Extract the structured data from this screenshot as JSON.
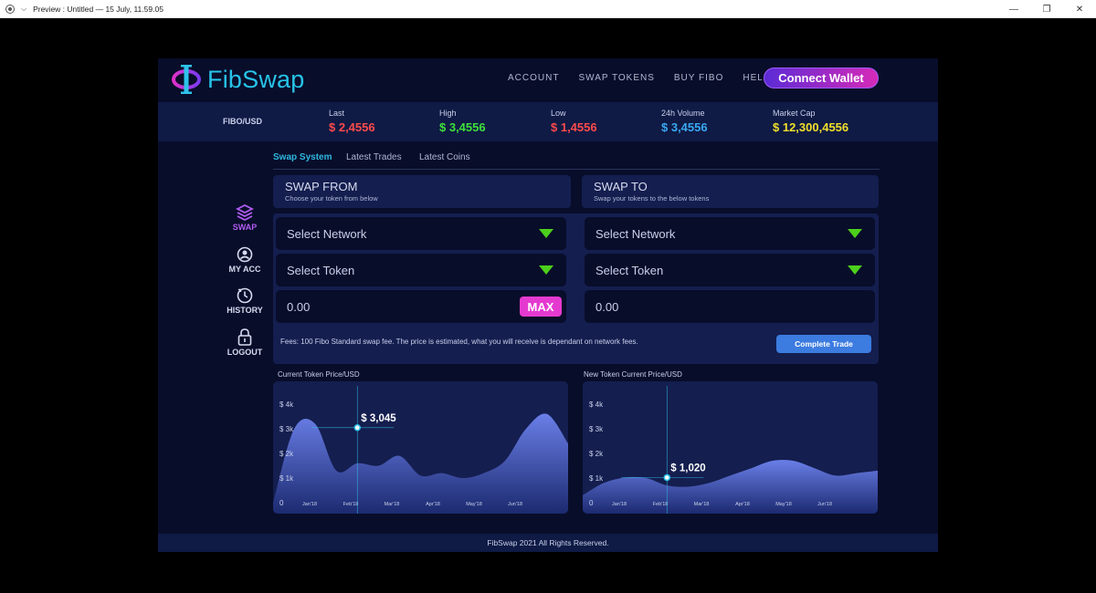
{
  "window": {
    "title": "Preview : Untitled — 15 July, 11.59.05",
    "minimize": "—",
    "restore": "❐",
    "close": "✕"
  },
  "header": {
    "logo_text": "FibSwap",
    "nav": [
      "ACCOUNT",
      "SWAP TOKENS",
      "BUY FIBO",
      "HELP"
    ],
    "connect_label": "Connect Wallet"
  },
  "ticker": {
    "pair": "FIBO/USD",
    "items": [
      {
        "label": "Last",
        "value": "$ 2,4556",
        "color": "#ff4b4b"
      },
      {
        "label": "High",
        "value": "$ 3,4556",
        "color": "#3fe03a"
      },
      {
        "label": "Low",
        "value": "$ 1,4556",
        "color": "#ff4b4b"
      },
      {
        "label": "24h Volume",
        "value": "$ 3,4556",
        "color": "#3aa8f0"
      },
      {
        "label": "Market Cap",
        "value": "$ 12,300,4556",
        "color": "#f0e02a"
      }
    ]
  },
  "tabs": [
    "Swap System",
    "Latest Trades",
    "Latest Coins"
  ],
  "sidebar": {
    "items": [
      {
        "label": "SWAP",
        "icon": "stack-icon"
      },
      {
        "label": "MY ACC",
        "icon": "user-icon"
      },
      {
        "label": "HISTORY",
        "icon": "clock-icon"
      },
      {
        "label": "LOGOUT",
        "icon": "lock-icon"
      }
    ]
  },
  "swap_from": {
    "title": "SWAP FROM",
    "subtitle": "Choose your token from below",
    "network_placeholder": "Select Network",
    "token_placeholder": "Select Token",
    "amount": "0.00",
    "max_label": "MAX"
  },
  "swap_to": {
    "title": "SWAP TO",
    "subtitle": "Swap your tokens to the below tokens",
    "network_placeholder": "Select Network",
    "token_placeholder": "Select Token",
    "amount": "0.00"
  },
  "fees_text": "Fees: 100 Fibo Standard swap fee. The price is estimated, what you will receive is dependant on network fees.",
  "complete_label": "Complete Trade",
  "chart_data": [
    {
      "type": "area",
      "title": "Current Token Price/USD",
      "x_ticks": [
        "Jan'18",
        "Feb'18",
        "Mar'18",
        "Apr'18",
        "May'18",
        "Jun'18"
      ],
      "y_ticks": [
        "0",
        "$ 1k",
        "$ 2k",
        "$ 3k",
        "$ 4k"
      ],
      "ylim": [
        0,
        4000
      ],
      "series": [
        {
          "values": [
            0,
            3000,
            3200,
            1300,
            1600,
            1500,
            1900,
            1100,
            1200,
            1000,
            1200,
            1700,
            3000,
            3600,
            2400
          ]
        }
      ],
      "annotation": {
        "label": "$ 3,045",
        "value": 3045
      }
    },
    {
      "type": "area",
      "title": "New Token Current Price/USD",
      "x_ticks": [
        "Jan'18",
        "Feb'18",
        "Mar'18",
        "Apr'18",
        "May'18",
        "Jun'18"
      ],
      "y_ticks": [
        "0",
        "$ 1k",
        "$ 2k",
        "$ 3k",
        "$ 4k"
      ],
      "ylim": [
        0,
        4000
      ],
      "series": [
        {
          "values": [
            300,
            800,
            1020,
            1000,
            700,
            650,
            800,
            1100,
            1400,
            1700,
            1700,
            1400,
            1100,
            1200,
            1300
          ]
        }
      ],
      "annotation": {
        "label": "$ 1,020",
        "value": 1020
      }
    }
  ],
  "footer": "FibSwap 2021 All Rights Reserved."
}
